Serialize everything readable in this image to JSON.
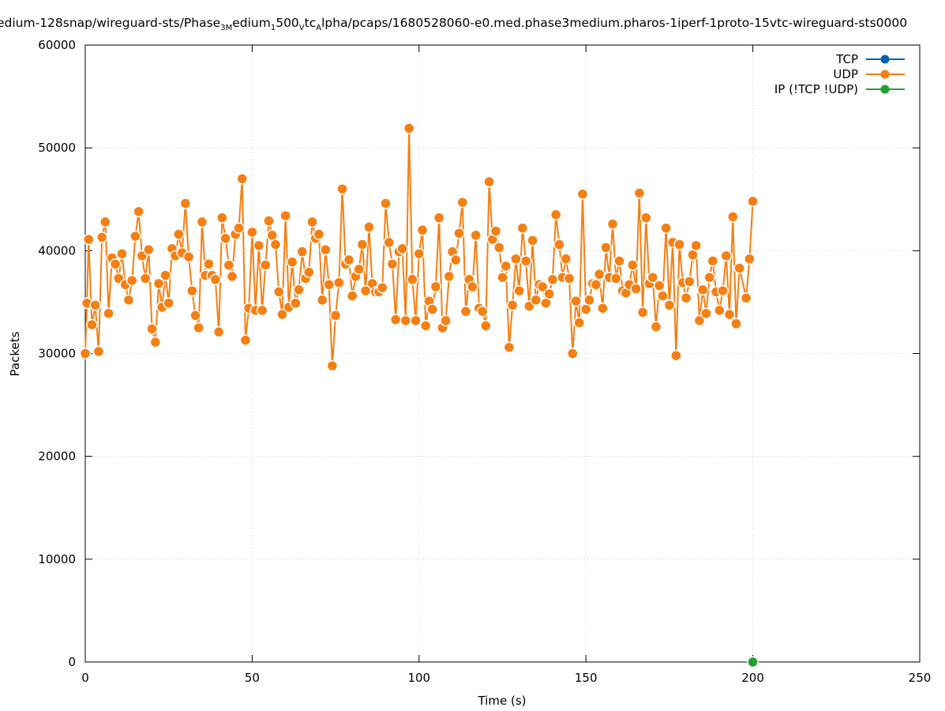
{
  "chart_data": {
    "type": "line",
    "title_parts": [
      {
        "t": "edium-128snap/wireguard-sts/Phase",
        "sub": false
      },
      {
        "t": "3M",
        "sub": true
      },
      {
        "t": "edium",
        "sub": false
      },
      {
        "t": "1",
        "sub": true
      },
      {
        "t": "500",
        "sub": false
      },
      {
        "t": "V",
        "sub": true
      },
      {
        "t": "tc",
        "sub": false
      },
      {
        "t": "A",
        "sub": true
      },
      {
        "t": "lpha/pcaps/1680528060-e0.med.phase3medium.pharos-1iperf-1proto-15vtc-wireguard-sts0000",
        "sub": false
      }
    ],
    "xlabel": "Time (s)",
    "ylabel": "Packets",
    "xlim": [
      0,
      250
    ],
    "ylim": [
      0,
      60000
    ],
    "xticks": [
      0,
      50,
      100,
      150,
      200,
      250
    ],
    "xtick_labels": [
      "0",
      "50",
      "100",
      "150",
      "200",
      "250"
    ],
    "yticks": [
      0,
      10000,
      20000,
      30000,
      40000,
      50000,
      60000
    ],
    "ytick_labels": [
      "0",
      "10000",
      "20000",
      "30000",
      "40000",
      "50000",
      "60000"
    ],
    "grid": true,
    "legend_position": "top-right",
    "series": [
      {
        "name": "TCP",
        "color": "#0060ad",
        "points": []
      },
      {
        "name": "UDP",
        "color": "#f57f13",
        "points": [
          [
            0,
            30000
          ],
          [
            0.5,
            34900
          ],
          [
            1,
            41100
          ],
          [
            2,
            32800
          ],
          [
            3,
            34700
          ],
          [
            4,
            30200
          ],
          [
            5,
            41300
          ],
          [
            6,
            42800
          ],
          [
            7,
            33900
          ],
          [
            8,
            39300
          ],
          [
            9,
            38700
          ],
          [
            10,
            37300
          ],
          [
            11,
            39700
          ],
          [
            12,
            36700
          ],
          [
            13,
            35200
          ],
          [
            14,
            37100
          ],
          [
            15,
            41400
          ],
          [
            16,
            43800
          ],
          [
            17,
            39500
          ],
          [
            18,
            37300
          ],
          [
            19,
            40100
          ],
          [
            20,
            32400
          ],
          [
            21,
            31100
          ],
          [
            22,
            36800
          ],
          [
            23,
            34500
          ],
          [
            24,
            37600
          ],
          [
            25,
            34900
          ],
          [
            26,
            40200
          ],
          [
            27,
            39500
          ],
          [
            28,
            41600
          ],
          [
            29,
            39800
          ],
          [
            30,
            44600
          ],
          [
            31,
            39400
          ],
          [
            32,
            36100
          ],
          [
            33,
            33700
          ],
          [
            34,
            32500
          ],
          [
            35,
            42800
          ],
          [
            36,
            37600
          ],
          [
            37,
            38700
          ],
          [
            38,
            37600
          ],
          [
            39,
            37200
          ],
          [
            40,
            32100
          ],
          [
            41,
            43200
          ],
          [
            42,
            41200
          ],
          [
            43,
            38600
          ],
          [
            44,
            37500
          ],
          [
            45,
            41600
          ],
          [
            46,
            42200
          ],
          [
            47,
            47000
          ],
          [
            48,
            31300
          ],
          [
            49,
            34400
          ],
          [
            50,
            41800
          ],
          [
            51,
            34200
          ],
          [
            52,
            40500
          ],
          [
            53,
            34200
          ],
          [
            54,
            38600
          ],
          [
            55,
            42900
          ],
          [
            56,
            41500
          ],
          [
            57,
            40600
          ],
          [
            58,
            36000
          ],
          [
            59,
            33800
          ],
          [
            60,
            43400
          ],
          [
            61,
            34500
          ],
          [
            62,
            38900
          ],
          [
            63,
            34900
          ],
          [
            64,
            36200
          ],
          [
            65,
            39900
          ],
          [
            66,
            37300
          ],
          [
            67,
            37900
          ],
          [
            68,
            42800
          ],
          [
            69,
            41200
          ],
          [
            70,
            41600
          ],
          [
            71,
            35200
          ],
          [
            72,
            40100
          ],
          [
            73,
            36700
          ],
          [
            74,
            28800
          ],
          [
            75,
            33700
          ],
          [
            76,
            36900
          ],
          [
            77,
            46000
          ],
          [
            78,
            38700
          ],
          [
            79,
            39100
          ],
          [
            80,
            35600
          ],
          [
            81,
            37500
          ],
          [
            82,
            38200
          ],
          [
            83,
            40600
          ],
          [
            84,
            36100
          ],
          [
            85,
            42300
          ],
          [
            86,
            36800
          ],
          [
            87,
            36000
          ],
          [
            88,
            36000
          ],
          [
            89,
            36400
          ],
          [
            90,
            44600
          ],
          [
            91,
            40800
          ],
          [
            92,
            38700
          ],
          [
            93,
            33300
          ],
          [
            94,
            39900
          ],
          [
            95,
            40200
          ],
          [
            96,
            33200
          ],
          [
            97,
            51900
          ],
          [
            98,
            37200
          ],
          [
            99,
            33200
          ],
          [
            100,
            39700
          ],
          [
            101,
            42000
          ],
          [
            102,
            32700
          ],
          [
            103,
            35100
          ],
          [
            104,
            34300
          ],
          [
            105,
            36500
          ],
          [
            106,
            43200
          ],
          [
            107,
            32500
          ],
          [
            108,
            33200
          ],
          [
            109,
            37500
          ],
          [
            110,
            39900
          ],
          [
            111,
            39100
          ],
          [
            112,
            41700
          ],
          [
            113,
            44700
          ],
          [
            114,
            34100
          ],
          [
            115,
            37200
          ],
          [
            116,
            36500
          ],
          [
            117,
            41500
          ],
          [
            118,
            34400
          ],
          [
            119,
            34100
          ],
          [
            120,
            32700
          ],
          [
            121,
            46700
          ],
          [
            122,
            41100
          ],
          [
            123,
            41900
          ],
          [
            124,
            40300
          ],
          [
            125,
            37400
          ],
          [
            126,
            38500
          ],
          [
            127,
            30600
          ],
          [
            128,
            34700
          ],
          [
            129,
            39200
          ],
          [
            130,
            36100
          ],
          [
            131,
            42200
          ],
          [
            132,
            39000
          ],
          [
            133,
            34600
          ],
          [
            134,
            41000
          ],
          [
            135,
            35200
          ],
          [
            136,
            36700
          ],
          [
            137,
            36500
          ],
          [
            138,
            34900
          ],
          [
            139,
            35800
          ],
          [
            140,
            37200
          ],
          [
            141,
            43500
          ],
          [
            142,
            40600
          ],
          [
            143,
            37400
          ],
          [
            144,
            39200
          ],
          [
            145,
            37300
          ],
          [
            146,
            30000
          ],
          [
            147,
            35100
          ],
          [
            148,
            33000
          ],
          [
            149,
            45500
          ],
          [
            150,
            34300
          ],
          [
            151,
            35200
          ],
          [
            152,
            36800
          ],
          [
            153,
            36700
          ],
          [
            154,
            37700
          ],
          [
            155,
            34400
          ],
          [
            156,
            40300
          ],
          [
            157,
            37400
          ],
          [
            158,
            42600
          ],
          [
            159,
            37300
          ],
          [
            160,
            39000
          ],
          [
            161,
            36100
          ],
          [
            162,
            35900
          ],
          [
            163,
            36700
          ],
          [
            164,
            38600
          ],
          [
            165,
            36300
          ],
          [
            166,
            45600
          ],
          [
            167,
            34000
          ],
          [
            168,
            43200
          ],
          [
            169,
            36800
          ],
          [
            170,
            37400
          ],
          [
            171,
            32600
          ],
          [
            172,
            36600
          ],
          [
            173,
            35600
          ],
          [
            174,
            42200
          ],
          [
            175,
            34700
          ],
          [
            176,
            40800
          ],
          [
            177,
            29800
          ],
          [
            178,
            40600
          ],
          [
            179,
            36900
          ],
          [
            180,
            35400
          ],
          [
            181,
            37000
          ],
          [
            182,
            39600
          ],
          [
            183,
            40500
          ],
          [
            184,
            33200
          ],
          [
            185,
            36200
          ],
          [
            186,
            33900
          ],
          [
            187,
            37400
          ],
          [
            188,
            39000
          ],
          [
            189,
            36000
          ],
          [
            190,
            34200
          ],
          [
            191,
            36100
          ],
          [
            192,
            39500
          ],
          [
            193,
            33800
          ],
          [
            194,
            43300
          ],
          [
            195,
            32900
          ],
          [
            196,
            38300
          ],
          [
            198,
            35400
          ],
          [
            199,
            39200
          ],
          [
            200,
            44800
          ]
        ]
      },
      {
        "name": "IP (!TCP  !UDP)",
        "color": "#20a030",
        "points": [
          [
            200,
            0
          ]
        ]
      }
    ]
  }
}
